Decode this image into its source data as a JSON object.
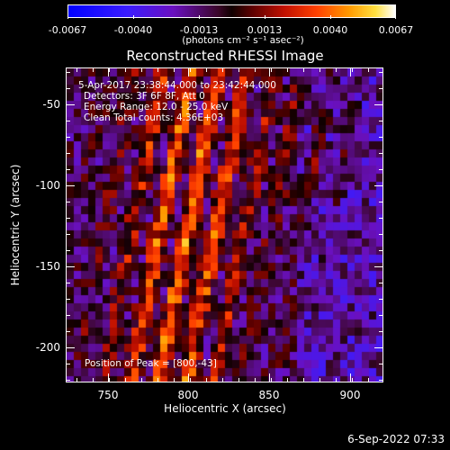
{
  "colorbar": {
    "tick_labels": [
      "-0.0067",
      "-0.0040",
      "-0.0013",
      "0.0013",
      "0.0040",
      "0.0067"
    ],
    "units": "(photons cm⁻² s⁻¹ asec⁻²)",
    "range": [
      -0.0067,
      0.0067
    ]
  },
  "title": "Reconstructed RHESSI Image",
  "annotations": {
    "time_range": "5-Apr-2017 23:38:44.000 to 23:42:44.000",
    "detectors": "Detectors: 3F 6F 8F, Att 0",
    "energy_range": "Energy Range: 12.0 - 25.0 keV",
    "clean_counts": "Clean     Total counts: 4.36E+03",
    "peak": "Position of Peak = [800,-43]"
  },
  "axes": {
    "xlabel": "Heliocentric X (arcsec)",
    "ylabel": "Heliocentric Y (arcsec)",
    "xticks": [
      "750",
      "800",
      "850",
      "900"
    ],
    "yticks": [
      "-50",
      "-100",
      "-150",
      "-200"
    ],
    "xlim": [
      725,
      920
    ],
    "ylim": [
      -223,
      -28
    ]
  },
  "timestamp": "6-Sep-2022 07:33",
  "chart_data": {
    "type": "heatmap",
    "title": "Reconstructed RHESSI Image",
    "xlabel": "Heliocentric X (arcsec)",
    "ylabel": "Heliocentric Y (arcsec)",
    "xlim": [
      725,
      920
    ],
    "ylim": [
      -223,
      -28
    ],
    "colorbar_range": [
      -0.0067,
      0.0067
    ],
    "peak_position": [
      800,
      -43
    ]
  }
}
